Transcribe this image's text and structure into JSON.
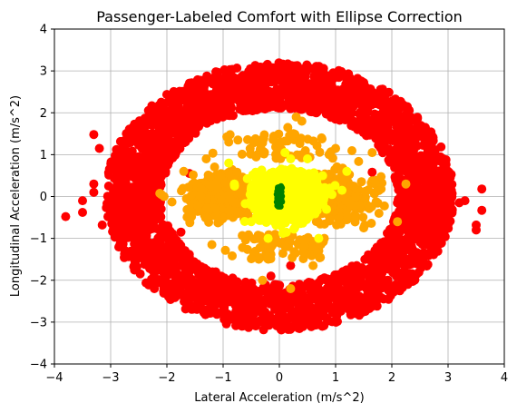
{
  "chart_data": {
    "type": "scatter",
    "title": "Passenger-Labeled Comfort with Ellipse Correction",
    "xlabel": "Lateral Acceleration (m/s^2)",
    "ylabel": "Longitudinal Acceleration (m/s^2)",
    "xlim": [
      -4,
      4
    ],
    "ylim": [
      -4,
      4
    ],
    "xticks": [
      "−4",
      "−3",
      "−2",
      "−1",
      "0",
      "1",
      "2",
      "3",
      "4"
    ],
    "yticks": [
      "−4",
      "−3",
      "−2",
      "−1",
      "0",
      "1",
      "2",
      "3",
      "4"
    ],
    "grid": true,
    "legend": "none",
    "series": [
      {
        "color": "#ff0000",
        "shape": "elliptical ring",
        "ring_outer_radius": [
          3.1,
          3.2
        ],
        "ring_inner_radius": [
          2.1,
          2.1
        ],
        "points": [
          [
            -3.8,
            -0.48
          ],
          [
            -3.5,
            -0.1
          ],
          [
            -3.5,
            -0.38
          ],
          [
            -3.3,
            1.48
          ],
          [
            -3.3,
            0.3
          ],
          [
            -3.3,
            0.1
          ],
          [
            -3.2,
            1.15
          ],
          [
            -3.15,
            -0.68
          ],
          [
            3.6,
            0.18
          ],
          [
            3.6,
            -0.33
          ],
          [
            3.5,
            -0.68
          ],
          [
            3.5,
            -0.8
          ],
          [
            3.3,
            -0.1
          ],
          [
            3.2,
            -0.15
          ],
          [
            -0.6,
            2.05
          ],
          [
            -1.75,
            -0.85
          ],
          [
            1.15,
            -0.45
          ],
          [
            0.95,
            -0.08
          ],
          [
            1.65,
            0.58
          ],
          [
            -0.6,
            0.0
          ],
          [
            -0.6,
            -2.05
          ],
          [
            -0.15,
            -1.9
          ],
          [
            -1.6,
            0.55
          ],
          [
            0.2,
            -1.65
          ]
        ]
      },
      {
        "color": "#ffa500",
        "shape": "horizontal cluster",
        "extent_x": [
          -2.2,
          2.3
        ],
        "extent_y": [
          -2.2,
          1.9
        ],
        "points": [
          [
            0.3,
            1.9
          ],
          [
            0.4,
            1.8
          ],
          [
            0.15,
            1.65
          ],
          [
            0.75,
            1.4
          ],
          [
            0.25,
            1.5
          ],
          [
            -0.9,
            1.3
          ],
          [
            0.2,
            -2.2
          ],
          [
            -0.3,
            -2.0
          ],
          [
            0.6,
            -1.65
          ],
          [
            1.0,
            1.15
          ],
          [
            -1.2,
            -1.15
          ],
          [
            -2.1,
            0.05
          ],
          [
            -2.05,
            0.0
          ],
          [
            2.1,
            -0.6
          ],
          [
            2.25,
            0.3
          ],
          [
            1.65,
            1.05
          ],
          [
            1.5,
            -0.75
          ],
          [
            -1.3,
            0.9
          ],
          [
            -1.7,
            0.6
          ],
          [
            0.8,
            -1.0
          ]
        ]
      },
      {
        "color": "#ffff00",
        "shape": "central cluster",
        "extent_x": [
          -1.0,
          1.3
        ],
        "extent_y": [
          -1.4,
          1.1
        ],
        "points": [
          [
            0.0,
            0.0
          ],
          [
            0.4,
            0.5
          ],
          [
            -0.4,
            0.5
          ],
          [
            0.6,
            -0.4
          ],
          [
            -0.5,
            -0.6
          ],
          [
            0.9,
            0.2
          ],
          [
            -0.8,
            0.3
          ],
          [
            0.2,
            0.9
          ],
          [
            -0.2,
            -1.0
          ],
          [
            1.2,
            0.6
          ],
          [
            0.7,
            -1.0
          ],
          [
            -0.9,
            0.8
          ],
          [
            0.1,
            1.05
          ],
          [
            0.5,
            0.9
          ]
        ]
      },
      {
        "color": "#008000",
        "shape": "small core",
        "extent_x": [
          -0.05,
          0.05
        ],
        "extent_y": [
          -0.25,
          0.25
        ],
        "points": [
          [
            0.0,
            0.2
          ],
          [
            0.0,
            0.1
          ],
          [
            0.0,
            0.0
          ],
          [
            0.0,
            -0.1
          ],
          [
            0.0,
            -0.2
          ]
        ]
      }
    ]
  }
}
